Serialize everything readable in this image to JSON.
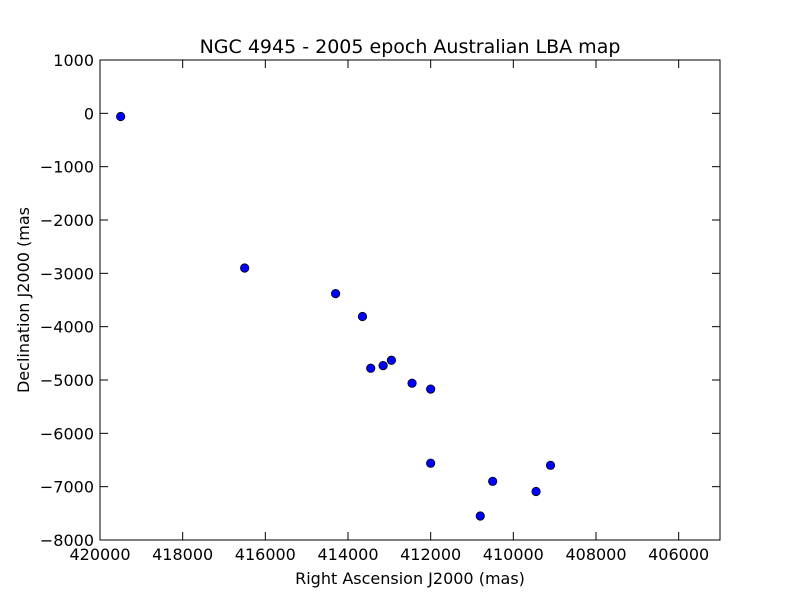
{
  "chart_data": {
    "type": "scatter",
    "title": "NGC 4945 - 2005 epoch Australian LBA map",
    "xlabel": "Right Ascension J2000 (mas)",
    "ylabel": "Declination J2000 (mas",
    "xlim": [
      420000,
      405000
    ],
    "ylim": [
      -8000,
      1000
    ],
    "x_ticks": [
      420000,
      418000,
      416000,
      414000,
      412000,
      410000,
      408000,
      406000
    ],
    "y_ticks": [
      1000,
      0,
      -1000,
      -2000,
      -3000,
      -4000,
      -5000,
      -6000,
      -7000,
      -8000
    ],
    "grid": false,
    "marker_color": "#0000ff",
    "points": [
      {
        "x": 419500,
        "y": -60
      },
      {
        "x": 416500,
        "y": -2900
      },
      {
        "x": 414300,
        "y": -3380
      },
      {
        "x": 413650,
        "y": -3810
      },
      {
        "x": 413450,
        "y": -4780
      },
      {
        "x": 413150,
        "y": -4730
      },
      {
        "x": 412950,
        "y": -4630
      },
      {
        "x": 412450,
        "y": -5060
      },
      {
        "x": 412000,
        "y": -5170
      },
      {
        "x": 412000,
        "y": -6560
      },
      {
        "x": 410500,
        "y": -6900
      },
      {
        "x": 410800,
        "y": -7550
      },
      {
        "x": 409450,
        "y": -7090
      },
      {
        "x": 409100,
        "y": -6600
      }
    ]
  }
}
